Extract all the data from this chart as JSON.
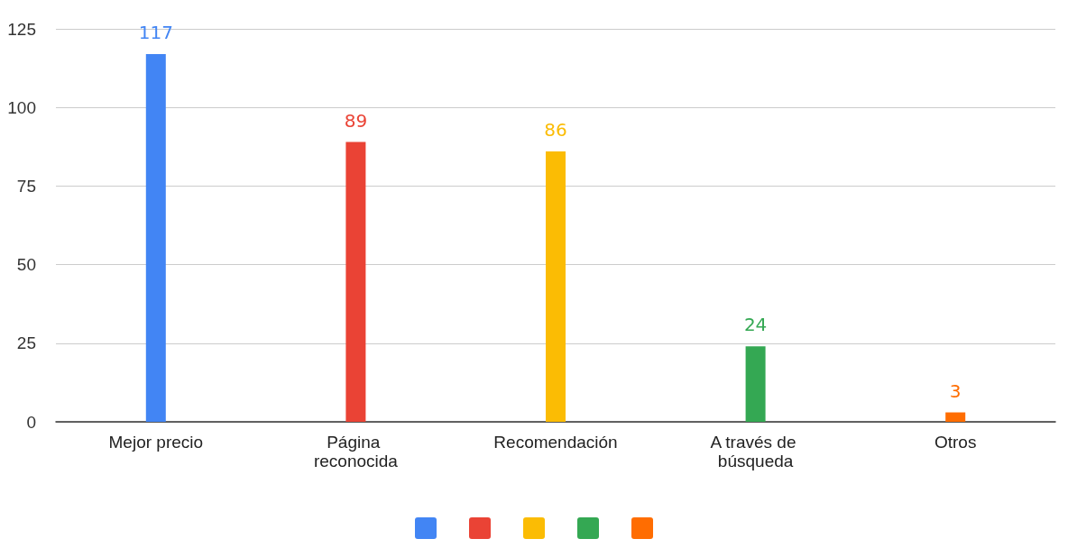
{
  "chart_data": {
    "type": "bar",
    "categories": [
      "Mejor precio",
      "Página reconocida",
      "Recomendación",
      "A través de búsqueda",
      "Otros"
    ],
    "series": [
      {
        "color": "#4285f4",
        "values": [
          117,
          null,
          null,
          null,
          null
        ]
      },
      {
        "color": "#ea4335",
        "values": [
          null,
          89,
          null,
          null,
          null
        ]
      },
      {
        "color": "#fbbc04",
        "values": [
          null,
          null,
          86,
          null,
          null
        ]
      },
      {
        "color": "#34a853",
        "values": [
          null,
          null,
          null,
          24,
          null
        ]
      },
      {
        "color": "#ff6d01",
        "values": [
          null,
          null,
          null,
          null,
          3
        ]
      }
    ],
    "ylim": [
      0,
      125
    ],
    "yticks": [
      0,
      25,
      50,
      75,
      100,
      125
    ],
    "grid": "y",
    "data_labels": true
  }
}
